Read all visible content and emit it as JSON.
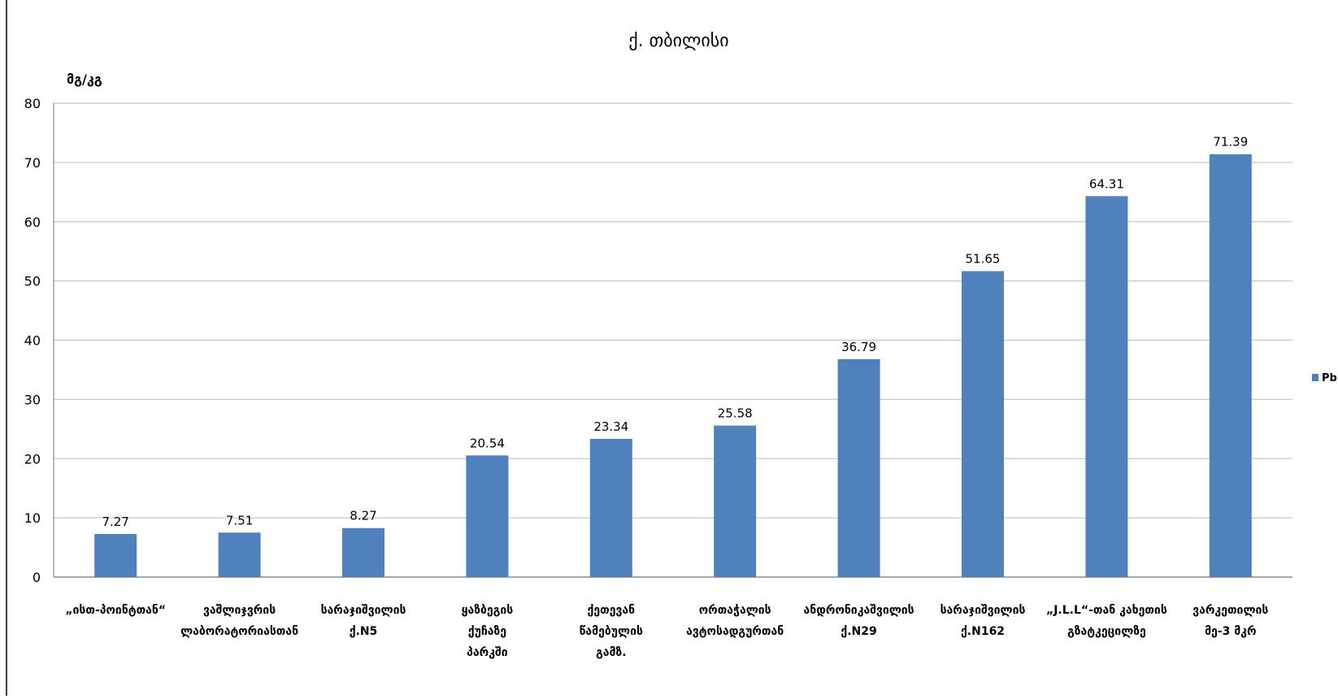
{
  "chart_data": {
    "type": "bar",
    "title": "ქ. თბილისი",
    "ylabel": "მგ/კგ",
    "xlabel": "",
    "ylim": [
      0,
      80
    ],
    "yticks": [
      "0",
      "10",
      "20",
      "30",
      "40",
      "50",
      "60",
      "70",
      "80"
    ],
    "grid": true,
    "legend_placement": "right",
    "categories": [
      [
        "„ისთ-პოინტთან“"
      ],
      [
        "ვაშლიჯვრის",
        "ლაბორატორიასთან"
      ],
      [
        "სარაჯიშვილის",
        "ქ.N5"
      ],
      [
        "ყაზბეგის",
        "ქუჩაზე",
        "პარკში"
      ],
      [
        "ქეთევან",
        "წამებულის",
        "გამზ."
      ],
      [
        "ორთაჭალის",
        "ავტოსადგურთან"
      ],
      [
        "ანდრონიკაშვილის",
        "ქ.N29"
      ],
      [
        "სარაჯიშვილის",
        "ქ.N162"
      ],
      [
        "„J.L.L“-თან კახეთის",
        "გზატკეცილზე"
      ],
      [
        "ვარკეთილის",
        "მე-3 მკრ"
      ]
    ],
    "series": [
      {
        "name": "Pb",
        "color": "#4f81bd",
        "values": [
          7.27,
          7.51,
          8.27,
          20.54,
          23.34,
          25.58,
          36.79,
          51.65,
          64.31,
          71.39
        ],
        "value_labels": [
          "7.27",
          "7.51",
          "8.27",
          "20.54",
          "23.34",
          "25.58",
          "36.79",
          "51.65",
          "64.31",
          "71.39"
        ]
      }
    ]
  }
}
